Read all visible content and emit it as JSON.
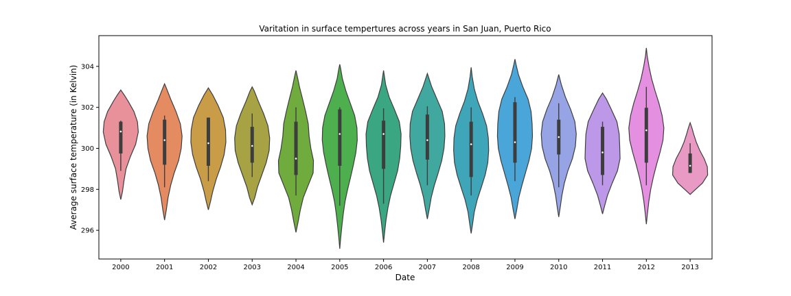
{
  "chart_data": {
    "type": "violin",
    "title": "Varitation in surface tempertures across years in San Juan, Puerto Rico",
    "xlabel": "Date",
    "ylabel": "Average surface temperature (in Kelvin)",
    "ylim": [
      294.6,
      305.5
    ],
    "yticks": [
      296,
      298,
      300,
      302,
      304
    ],
    "grid": false,
    "categories": [
      "2000",
      "2001",
      "2002",
      "2003",
      "2004",
      "2005",
      "2006",
      "2007",
      "2008",
      "2009",
      "2010",
      "2011",
      "2012",
      "2013"
    ],
    "violins": [
      {
        "year": "2000",
        "color": "#e8919a",
        "min": 297.5,
        "max": 302.85,
        "q1": 299.75,
        "median": 300.82,
        "q3": 301.3,
        "whisker_low": 298.9,
        "whisker_high": 301.35,
        "profile": [
          [
            297.5,
            0.0
          ],
          [
            297.9,
            0.1
          ],
          [
            298.4,
            0.18
          ],
          [
            299.0,
            0.3
          ],
          [
            299.6,
            0.55
          ],
          [
            300.2,
            0.85
          ],
          [
            300.8,
            1.0
          ],
          [
            301.3,
            0.95
          ],
          [
            301.8,
            0.75
          ],
          [
            302.3,
            0.42
          ],
          [
            302.6,
            0.2
          ],
          [
            302.85,
            0.0
          ]
        ]
      },
      {
        "year": "2001",
        "color": "#e58b62",
        "min": 296.5,
        "max": 303.15,
        "q1": 299.2,
        "median": 300.4,
        "q3": 301.4,
        "whisker_low": 298.1,
        "whisker_high": 301.6,
        "profile": [
          [
            296.5,
            0.0
          ],
          [
            297.0,
            0.1
          ],
          [
            297.6,
            0.2
          ],
          [
            298.2,
            0.35
          ],
          [
            298.8,
            0.55
          ],
          [
            299.4,
            0.8
          ],
          [
            300.0,
            0.95
          ],
          [
            300.6,
            1.0
          ],
          [
            301.2,
            0.9
          ],
          [
            301.8,
            0.65
          ],
          [
            302.4,
            0.35
          ],
          [
            302.9,
            0.12
          ],
          [
            303.15,
            0.0
          ]
        ]
      },
      {
        "year": "2002",
        "color": "#c99c48",
        "min": 297.0,
        "max": 302.95,
        "q1": 299.15,
        "median": 300.25,
        "q3": 301.5,
        "whisker_low": 298.4,
        "whisker_high": 301.5,
        "profile": [
          [
            297.0,
            0.0
          ],
          [
            297.4,
            0.12
          ],
          [
            297.9,
            0.25
          ],
          [
            298.5,
            0.45
          ],
          [
            299.1,
            0.7
          ],
          [
            299.7,
            0.9
          ],
          [
            300.3,
            1.0
          ],
          [
            300.9,
            0.98
          ],
          [
            301.5,
            0.85
          ],
          [
            302.1,
            0.55
          ],
          [
            302.6,
            0.25
          ],
          [
            302.95,
            0.0
          ]
        ]
      },
      {
        "year": "2003",
        "color": "#a7a243",
        "min": 297.25,
        "max": 303.0,
        "q1": 299.3,
        "median": 300.12,
        "q3": 301.05,
        "whisker_low": 298.6,
        "whisker_high": 301.7,
        "profile": [
          [
            297.25,
            0.0
          ],
          [
            297.6,
            0.15
          ],
          [
            298.1,
            0.3
          ],
          [
            298.7,
            0.55
          ],
          [
            299.3,
            0.8
          ],
          [
            299.9,
            0.97
          ],
          [
            300.5,
            1.0
          ],
          [
            301.1,
            0.9
          ],
          [
            301.7,
            0.65
          ],
          [
            302.3,
            0.35
          ],
          [
            302.8,
            0.12
          ],
          [
            303.0,
            0.0
          ]
        ]
      },
      {
        "year": "2004",
        "color": "#6fab3d",
        "min": 295.9,
        "max": 303.8,
        "q1": 298.7,
        "median": 299.5,
        "q3": 301.3,
        "whisker_low": 297.7,
        "whisker_high": 302.0,
        "profile": [
          [
            295.9,
            0.0
          ],
          [
            296.4,
            0.12
          ],
          [
            297.0,
            0.25
          ],
          [
            297.6,
            0.42
          ],
          [
            298.2,
            0.7
          ],
          [
            298.8,
            0.98
          ],
          [
            299.4,
            1.0
          ],
          [
            300.0,
            0.85
          ],
          [
            300.6,
            0.75
          ],
          [
            301.2,
            0.7
          ],
          [
            301.8,
            0.55
          ],
          [
            302.4,
            0.38
          ],
          [
            303.0,
            0.2
          ],
          [
            303.5,
            0.08
          ],
          [
            303.8,
            0.0
          ]
        ]
      },
      {
        "year": "2005",
        "color": "#4daf4d",
        "min": 295.1,
        "max": 304.1,
        "q1": 299.15,
        "median": 300.7,
        "q3": 301.9,
        "whisker_low": 297.2,
        "whisker_high": 302.0,
        "profile": [
          [
            295.1,
            0.0
          ],
          [
            295.6,
            0.05
          ],
          [
            296.2,
            0.12
          ],
          [
            296.8,
            0.2
          ],
          [
            297.4,
            0.3
          ],
          [
            298.0,
            0.45
          ],
          [
            298.6,
            0.62
          ],
          [
            299.2,
            0.78
          ],
          [
            299.8,
            0.92
          ],
          [
            300.4,
            1.0
          ],
          [
            301.0,
            0.98
          ],
          [
            301.6,
            0.85
          ],
          [
            302.2,
            0.6
          ],
          [
            302.8,
            0.35
          ],
          [
            303.4,
            0.15
          ],
          [
            303.9,
            0.05
          ],
          [
            304.1,
            0.0
          ]
        ]
      },
      {
        "year": "2006",
        "color": "#3aa682",
        "min": 295.4,
        "max": 303.8,
        "q1": 299.0,
        "median": 300.7,
        "q3": 301.35,
        "whisker_low": 297.3,
        "whisker_high": 301.95,
        "profile": [
          [
            295.4,
            0.0
          ],
          [
            295.9,
            0.06
          ],
          [
            296.5,
            0.14
          ],
          [
            297.1,
            0.25
          ],
          [
            297.7,
            0.4
          ],
          [
            298.3,
            0.6
          ],
          [
            298.9,
            0.8
          ],
          [
            299.5,
            0.92
          ],
          [
            300.1,
            0.98
          ],
          [
            300.7,
            1.0
          ],
          [
            301.3,
            0.9
          ],
          [
            301.9,
            0.62
          ],
          [
            302.5,
            0.32
          ],
          [
            303.1,
            0.12
          ],
          [
            303.8,
            0.0
          ]
        ]
      },
      {
        "year": "2007",
        "color": "#41a8a0",
        "min": 296.55,
        "max": 303.65,
        "q1": 299.45,
        "median": 300.4,
        "q3": 301.65,
        "whisker_low": 298.2,
        "whisker_high": 302.05,
        "profile": [
          [
            296.55,
            0.0
          ],
          [
            297.0,
            0.1
          ],
          [
            297.6,
            0.22
          ],
          [
            298.2,
            0.4
          ],
          [
            298.8,
            0.62
          ],
          [
            299.4,
            0.82
          ],
          [
            300.0,
            0.95
          ],
          [
            300.6,
            1.0
          ],
          [
            301.2,
            0.98
          ],
          [
            301.8,
            0.85
          ],
          [
            302.4,
            0.55
          ],
          [
            303.0,
            0.25
          ],
          [
            303.65,
            0.0
          ]
        ]
      },
      {
        "year": "2008",
        "color": "#3fa6ba",
        "min": 295.85,
        "max": 303.95,
        "q1": 298.6,
        "median": 300.2,
        "q3": 301.3,
        "whisker_low": 297.7,
        "whisker_high": 302.0,
        "profile": [
          [
            295.85,
            0.0
          ],
          [
            296.3,
            0.08
          ],
          [
            296.9,
            0.18
          ],
          [
            297.5,
            0.35
          ],
          [
            298.1,
            0.58
          ],
          [
            298.7,
            0.8
          ],
          [
            299.3,
            0.95
          ],
          [
            299.9,
            1.0
          ],
          [
            300.5,
            0.98
          ],
          [
            301.1,
            0.88
          ],
          [
            301.7,
            0.65
          ],
          [
            302.3,
            0.38
          ],
          [
            302.9,
            0.18
          ],
          [
            303.5,
            0.06
          ],
          [
            303.95,
            0.0
          ]
        ]
      },
      {
        "year": "2009",
        "color": "#4aa6d9",
        "min": 296.55,
        "max": 304.35,
        "q1": 299.3,
        "median": 300.3,
        "q3": 302.25,
        "whisker_low": 298.4,
        "whisker_high": 302.5,
        "profile": [
          [
            296.55,
            0.0
          ],
          [
            297.0,
            0.1
          ],
          [
            297.6,
            0.22
          ],
          [
            298.2,
            0.4
          ],
          [
            298.8,
            0.6
          ],
          [
            299.4,
            0.8
          ],
          [
            300.0,
            0.95
          ],
          [
            300.6,
            1.0
          ],
          [
            301.2,
            0.98
          ],
          [
            301.8,
            0.92
          ],
          [
            302.4,
            0.75
          ],
          [
            303.0,
            0.45
          ],
          [
            303.6,
            0.2
          ],
          [
            304.1,
            0.06
          ],
          [
            304.35,
            0.0
          ]
        ]
      },
      {
        "year": "2010",
        "color": "#96a4e6",
        "min": 296.65,
        "max": 303.6,
        "q1": 299.7,
        "median": 300.55,
        "q3": 301.4,
        "whisker_low": 298.1,
        "whisker_high": 302.2,
        "profile": [
          [
            296.65,
            0.0
          ],
          [
            297.1,
            0.08
          ],
          [
            297.7,
            0.18
          ],
          [
            298.3,
            0.32
          ],
          [
            298.9,
            0.52
          ],
          [
            299.5,
            0.78
          ],
          [
            300.1,
            0.95
          ],
          [
            300.7,
            1.0
          ],
          [
            301.3,
            0.92
          ],
          [
            301.9,
            0.68
          ],
          [
            302.5,
            0.38
          ],
          [
            303.1,
            0.15
          ],
          [
            303.6,
            0.0
          ]
        ]
      },
      {
        "year": "2011",
        "color": "#bd97e8",
        "min": 296.8,
        "max": 302.7,
        "q1": 298.7,
        "median": 299.8,
        "q3": 301.05,
        "whisker_low": 298.2,
        "whisker_high": 301.3,
        "profile": [
          [
            296.8,
            0.0
          ],
          [
            297.2,
            0.12
          ],
          [
            297.7,
            0.28
          ],
          [
            298.3,
            0.55
          ],
          [
            298.9,
            0.85
          ],
          [
            299.5,
            1.0
          ],
          [
            300.1,
            0.98
          ],
          [
            300.7,
            0.95
          ],
          [
            301.3,
            0.82
          ],
          [
            301.9,
            0.5
          ],
          [
            302.4,
            0.22
          ],
          [
            302.7,
            0.0
          ]
        ]
      },
      {
        "year": "2012",
        "color": "#e58fe0",
        "min": 296.3,
        "max": 304.9,
        "q1": 299.3,
        "median": 300.88,
        "q3": 301.98,
        "whisker_low": 298.2,
        "whisker_high": 303.0,
        "profile": [
          [
            296.3,
            0.0
          ],
          [
            296.8,
            0.06
          ],
          [
            297.4,
            0.14
          ],
          [
            298.0,
            0.25
          ],
          [
            298.6,
            0.4
          ],
          [
            299.2,
            0.58
          ],
          [
            299.8,
            0.78
          ],
          [
            300.4,
            0.95
          ],
          [
            301.0,
            1.0
          ],
          [
            301.6,
            0.9
          ],
          [
            302.2,
            0.72
          ],
          [
            302.8,
            0.5
          ],
          [
            303.4,
            0.3
          ],
          [
            304.0,
            0.15
          ],
          [
            304.5,
            0.05
          ],
          [
            304.9,
            0.0
          ]
        ]
      },
      {
        "year": "2013",
        "color": "#e99ac4",
        "min": 297.75,
        "max": 301.25,
        "q1": 298.8,
        "median": 299.15,
        "q3": 299.75,
        "whisker_low": 298.8,
        "whisker_high": 300.25,
        "profile": [
          [
            297.75,
            0.0
          ],
          [
            297.95,
            0.25
          ],
          [
            298.3,
            0.7
          ],
          [
            298.7,
            1.0
          ],
          [
            299.1,
            0.98
          ],
          [
            299.5,
            0.8
          ],
          [
            299.9,
            0.55
          ],
          [
            300.3,
            0.35
          ],
          [
            300.7,
            0.2
          ],
          [
            301.0,
            0.1
          ],
          [
            301.25,
            0.0
          ]
        ]
      }
    ]
  }
}
